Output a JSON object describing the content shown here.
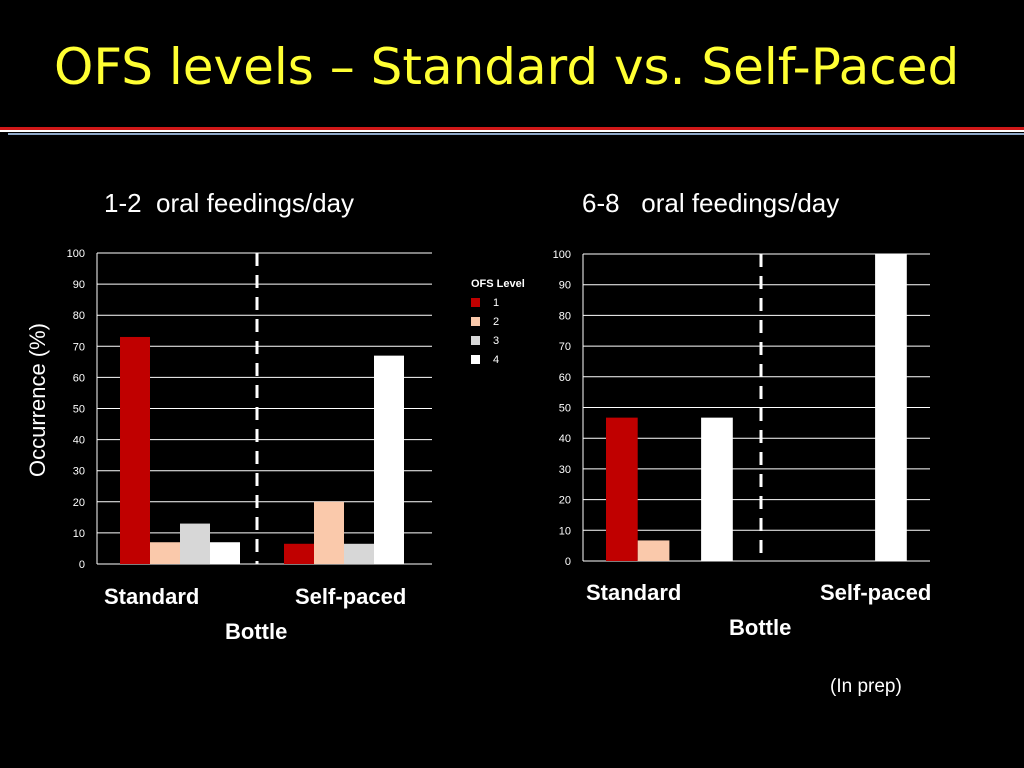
{
  "title": "OFS levels – Standard vs. Self-Paced",
  "ylabel": "Occurrence (%)",
  "legend": {
    "title": "OFS Level",
    "items": [
      {
        "label": "1",
        "color": "#c00000"
      },
      {
        "label": "2",
        "color": "#fac9ab"
      },
      {
        "label": "3",
        "color": "#d7d7d7"
      },
      {
        "label": "4",
        "color": "#ffffff"
      }
    ]
  },
  "note": "(In prep)",
  "chart_data": [
    {
      "type": "bar",
      "title": "1-2  oral feedings/day",
      "categories": [
        "Standard",
        "Self-paced"
      ],
      "xlabel": "Bottle",
      "ylabel": "Occurrence (%)",
      "ylim": [
        0,
        100
      ],
      "yticks": [
        0,
        10,
        20,
        30,
        40,
        50,
        60,
        70,
        80,
        90,
        100
      ],
      "grid": true,
      "series": [
        {
          "name": "1",
          "values": [
            73,
            6.5
          ]
        },
        {
          "name": "2",
          "values": [
            7,
            20
          ]
        },
        {
          "name": "3",
          "values": [
            13,
            6.5
          ]
        },
        {
          "name": "4",
          "values": [
            7,
            67
          ]
        }
      ]
    },
    {
      "type": "bar",
      "title": "6-8   oral feedings/day",
      "categories": [
        "Standard",
        "Self-paced"
      ],
      "xlabel": "Bottle",
      "ylim": [
        0,
        100
      ],
      "yticks": [
        0,
        10,
        20,
        30,
        40,
        50,
        60,
        70,
        80,
        90,
        100
      ],
      "grid": true,
      "series": [
        {
          "name": "1",
          "values": [
            46.7,
            0
          ]
        },
        {
          "name": "2",
          "values": [
            6.7,
            0
          ]
        },
        {
          "name": "3",
          "values": [
            0,
            0
          ]
        },
        {
          "name": "4",
          "values": [
            46.7,
            100
          ]
        }
      ]
    }
  ]
}
